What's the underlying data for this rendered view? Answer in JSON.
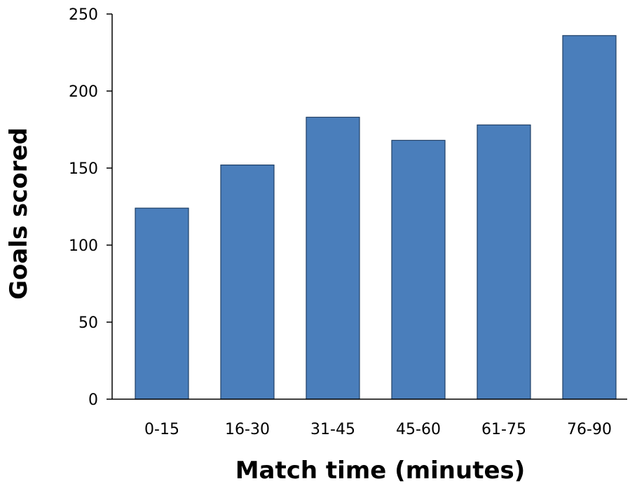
{
  "chart_data": {
    "type": "bar",
    "categories": [
      "0-15",
      "16-30",
      "31-45",
      "45-60",
      "61-75",
      "76-90"
    ],
    "values": [
      124,
      152,
      183,
      168,
      178,
      236
    ],
    "xlabel": "Match time (minutes)",
    "ylabel": "Goals scored",
    "ylim": [
      0,
      250
    ],
    "yticks": [
      "0",
      "50",
      "100",
      "150",
      "200",
      "250"
    ],
    "bar_color": "#4a7ebb",
    "grid": false,
    "legend": "none"
  }
}
